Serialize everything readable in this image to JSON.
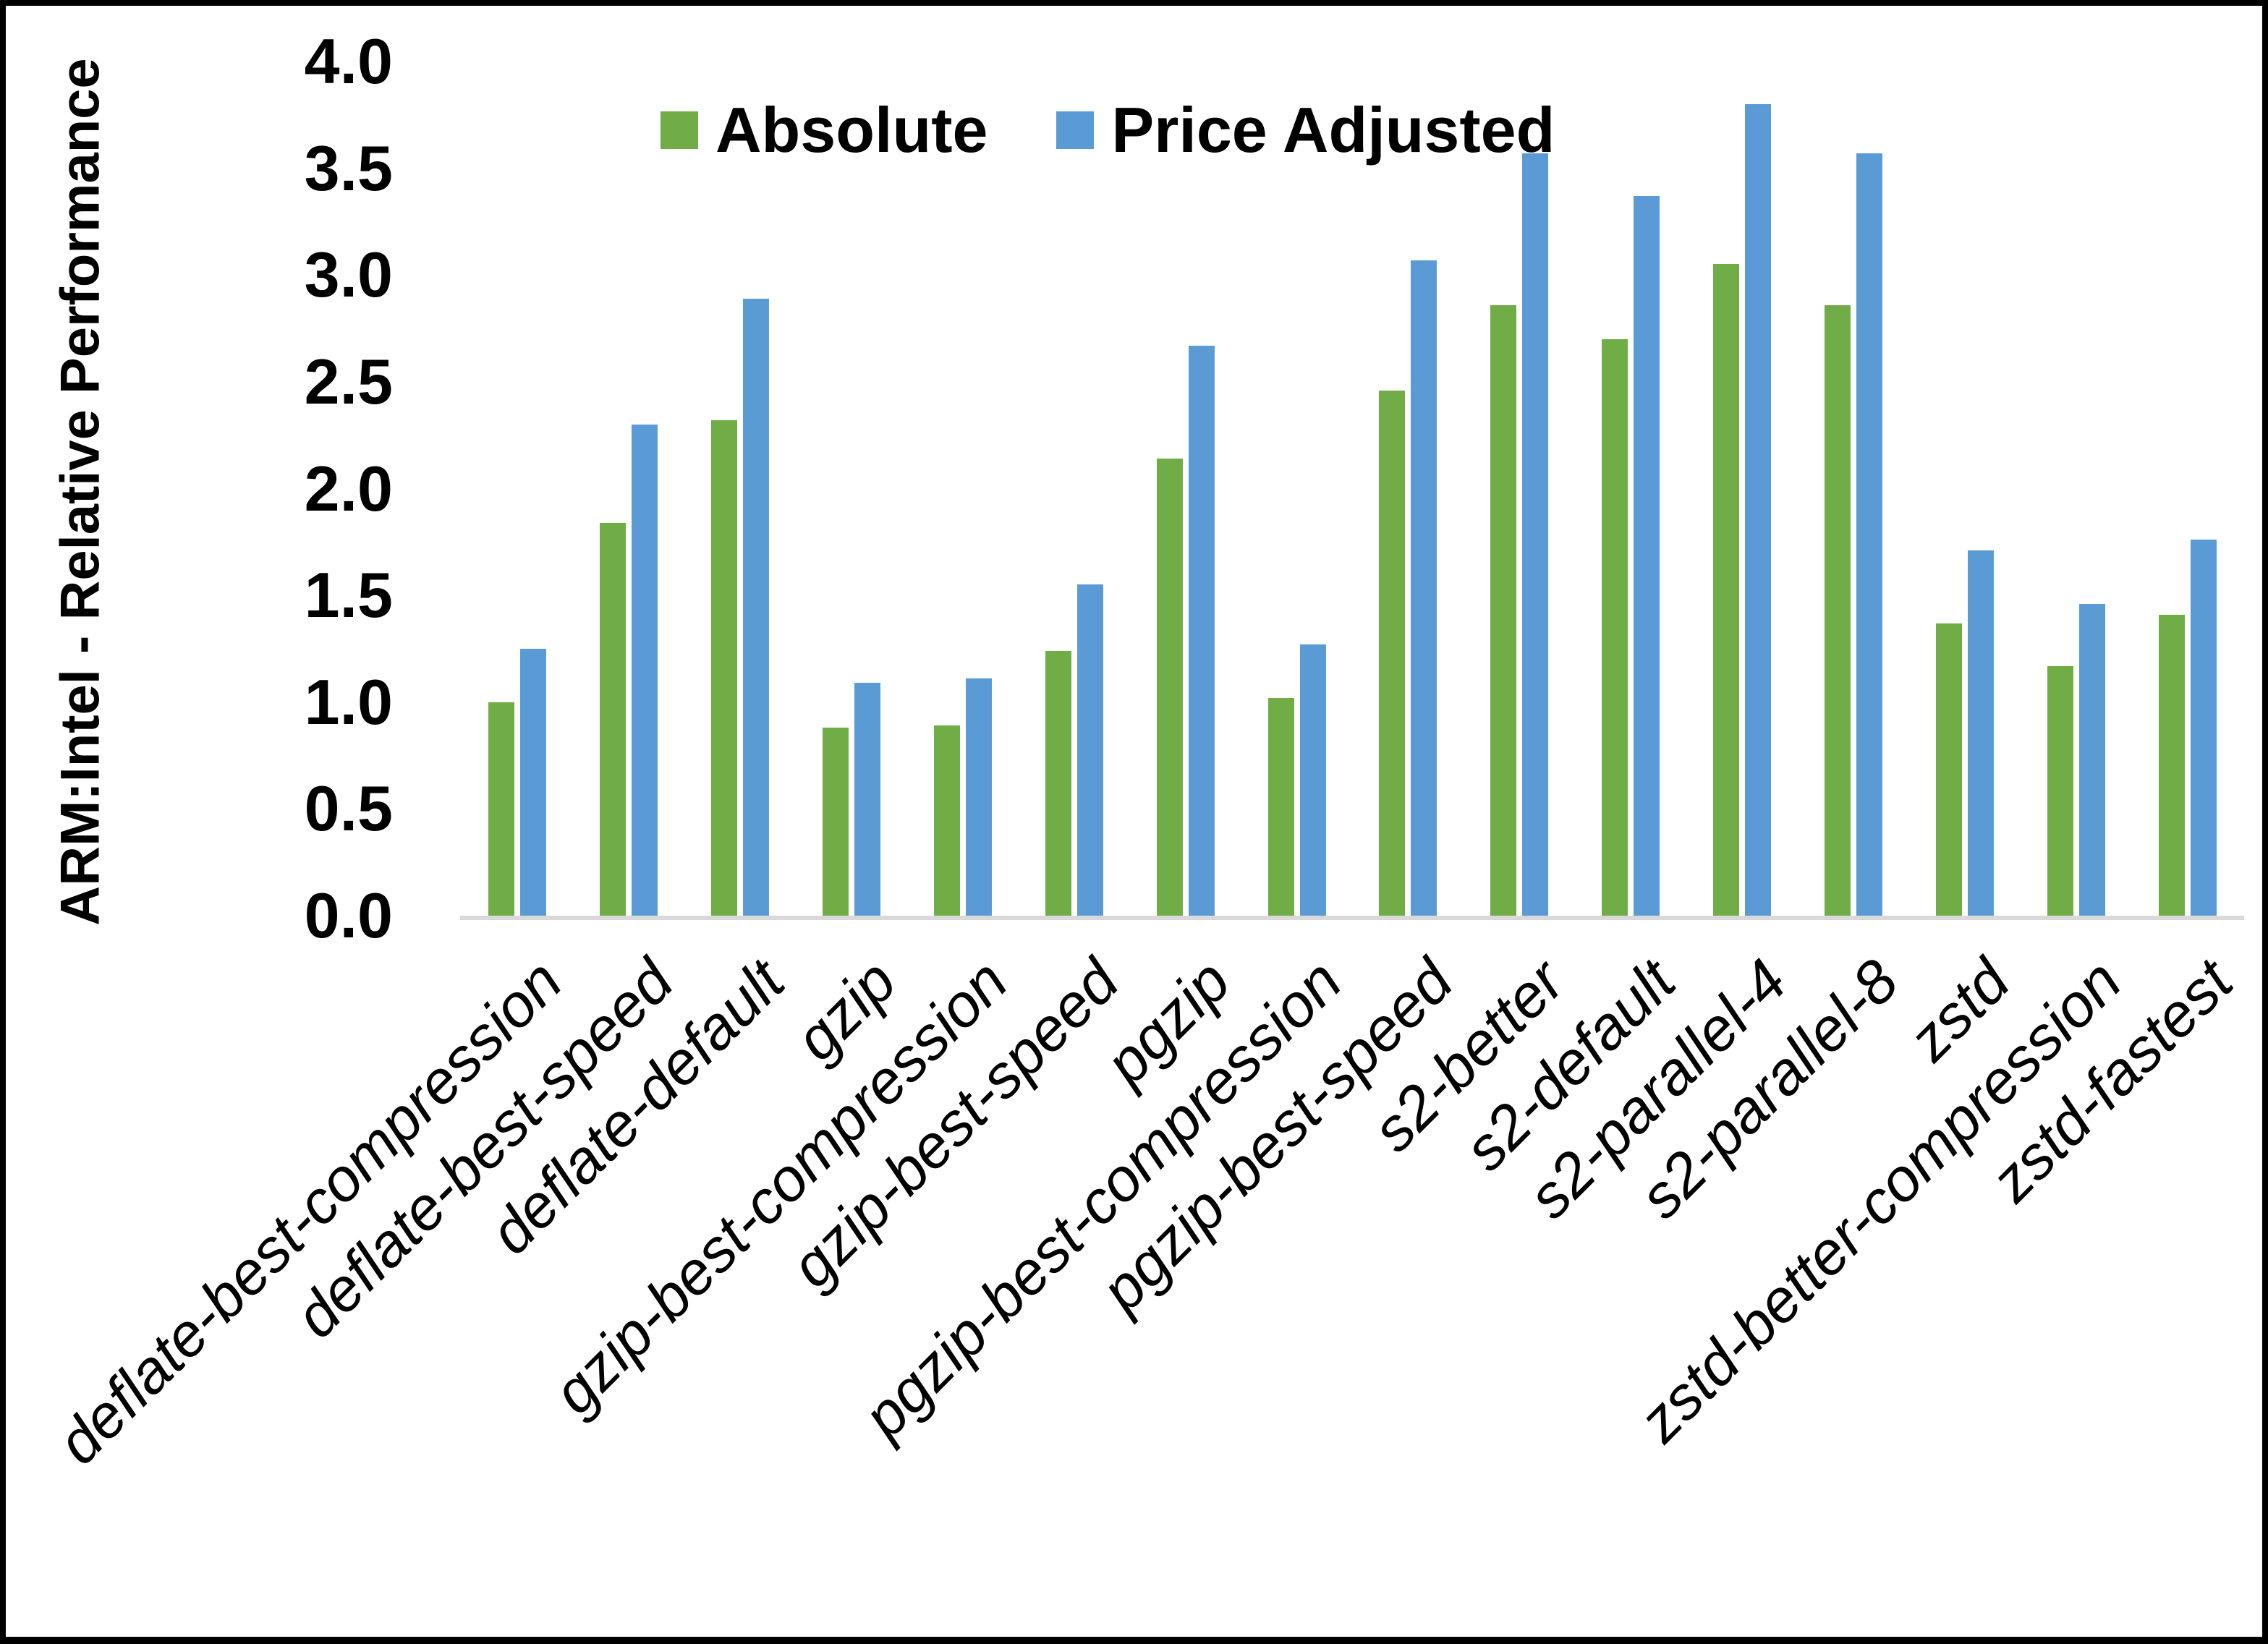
{
  "chart_data": {
    "type": "bar",
    "title": "",
    "xlabel": "",
    "ylabel": "ARM:Intel - Relative Performance",
    "ylim": [
      0.0,
      4.0
    ],
    "ytick_labels": [
      "0.0",
      "0.5",
      "1.0",
      "1.5",
      "2.0",
      "2.5",
      "3.0",
      "3.5",
      "4.0"
    ],
    "grid": false,
    "legend_position": "top-center",
    "categories": [
      "deflate-best-compression",
      "deflate-best-speed",
      "deflate-default",
      "gzip",
      "gzip-best-compression",
      "gzip-best-speed",
      "pgzip",
      "pgzip-best-compression",
      "pgzip-best-speed",
      "s2-better",
      "s2-default",
      "s2-parallel-4",
      "s2-parallel-8",
      "zstd",
      "zstd-better-compression",
      "zstd-fastest"
    ],
    "series": [
      {
        "name": "Absolute",
        "color": "#70AD47",
        "values": [
          1.0,
          1.84,
          2.32,
          0.88,
          0.89,
          1.24,
          2.14,
          1.02,
          2.46,
          2.86,
          2.7,
          3.05,
          2.86,
          1.37,
          1.17,
          1.41
        ]
      },
      {
        "name": "Price Adjusted",
        "color": "#5B9BD5",
        "values": [
          1.25,
          2.3,
          2.89,
          1.09,
          1.11,
          1.55,
          2.67,
          1.27,
          3.07,
          3.57,
          3.37,
          3.8,
          3.57,
          1.71,
          1.46,
          1.76
        ]
      }
    ]
  },
  "colors": {
    "axis_line": "#D9D9D9",
    "text": "#000000",
    "background": "#FFFFFF",
    "border": "#000000"
  }
}
